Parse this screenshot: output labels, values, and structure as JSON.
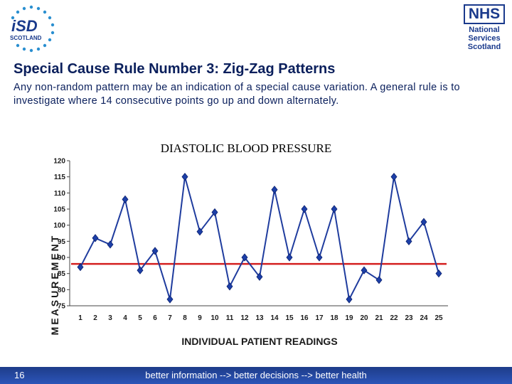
{
  "logos": {
    "isd": {
      "letters": "iSD",
      "sub": "SCOTLAND"
    },
    "nhs": {
      "mark": "NHS",
      "lines": [
        "National",
        "Services",
        "Scotland"
      ]
    }
  },
  "slide": {
    "title": "Special Cause Rule Number 3:  Zig-Zag Patterns",
    "body": "Any non-random pattern may be an indication of a special cause variation.  A general rule is to investigate where 14 consecutive points go up and down alternately."
  },
  "footer": {
    "slide_number": "16",
    "tagline": "better information --> better decisions --> better health",
    "color": "#2447a0"
  },
  "chart_data": {
    "type": "line",
    "title": "DIASTOLIC BLOOD PRESSURE",
    "xlabel": "INDIVIDUAL PATIENT READINGS",
    "ylabel": "MEASUREMENT",
    "x": [
      1,
      2,
      3,
      4,
      5,
      6,
      7,
      8,
      9,
      10,
      11,
      12,
      13,
      14,
      15,
      16,
      17,
      18,
      19,
      20,
      21,
      22,
      23,
      24,
      25
    ],
    "ylim": [
      75,
      120
    ],
    "yticks": [
      75,
      80,
      85,
      90,
      95,
      100,
      105,
      110,
      115,
      120
    ],
    "grid": false,
    "series": [
      {
        "values": [
          87,
          96,
          94,
          108,
          86,
          92,
          77,
          115,
          98,
          104,
          81,
          90,
          84,
          111,
          90,
          105,
          90,
          105,
          77,
          86,
          83,
          115,
          95,
          101,
          85
        ],
        "color": "#1f3c9e",
        "marker": "diamond"
      }
    ],
    "reference_line": {
      "value": 88,
      "color": "#d42020"
    }
  }
}
